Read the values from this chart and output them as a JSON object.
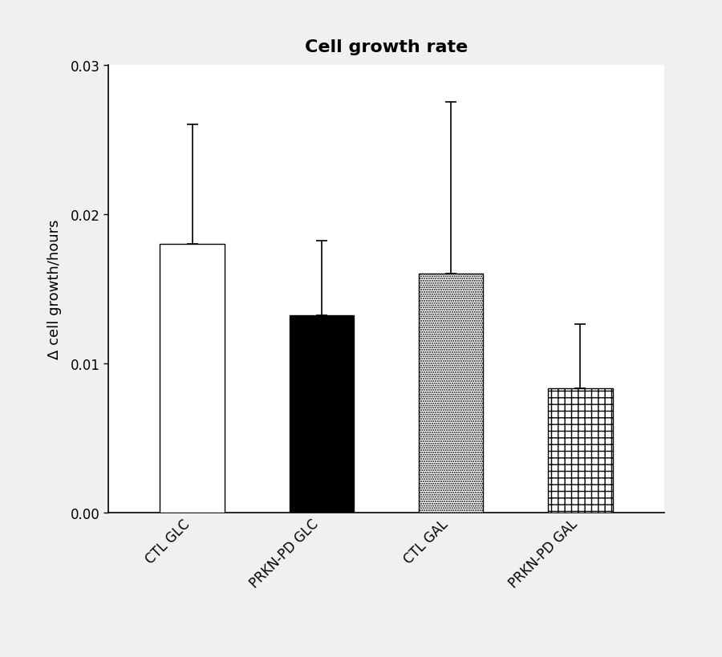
{
  "title": "Cell growth rate",
  "ylabel": "Δ cell growth/hours",
  "categories": [
    "CTL GLC",
    "PRKN-PD GLC",
    "CTL GAL",
    "PRKN-PD GAL"
  ],
  "values": [
    0.018,
    0.0132,
    0.016,
    0.0083
  ],
  "errors_upper": [
    0.008,
    0.005,
    0.0115,
    0.0043
  ],
  "errors_lower": [
    0.0,
    0.0,
    0.0,
    0.0
  ],
  "ylim": [
    0.0,
    0.03
  ],
  "yticks": [
    0.0,
    0.01,
    0.02,
    0.03
  ],
  "bar_width": 0.5,
  "title_fontsize": 16,
  "label_fontsize": 13,
  "tick_fontsize": 12,
  "background_color": "#f0f0f0",
  "figsize": [
    9.0,
    8.2
  ],
  "dpi": 100
}
